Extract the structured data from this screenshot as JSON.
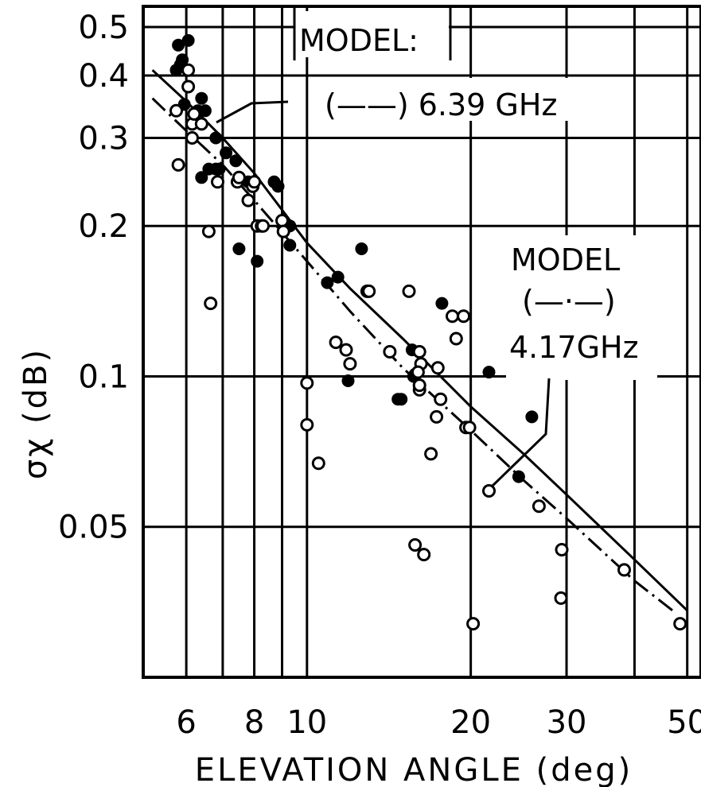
{
  "chart_data": {
    "type": "scatter",
    "title": "",
    "xlabel": "ELEVATION ANGLE (deg)",
    "ylabel": "σχ (dB)",
    "xscale": "log",
    "yscale": "log",
    "xlim": [
      5.0,
      53.0
    ],
    "ylim": [
      0.025,
      0.55
    ],
    "grid": true,
    "x_ticks": [
      {
        "value": 6,
        "label": "6"
      },
      {
        "value": 8,
        "label": "8"
      },
      {
        "value": 10,
        "label": "10"
      },
      {
        "value": 20,
        "label": "20"
      },
      {
        "value": 30,
        "label": "30"
      },
      {
        "value": 50,
        "label": "50"
      }
    ],
    "y_ticks": [
      {
        "value": 0.5,
        "label": "0.5"
      },
      {
        "value": 0.4,
        "label": "0.4"
      },
      {
        "value": 0.3,
        "label": "0.3"
      },
      {
        "value": 0.2,
        "label": "0.2"
      },
      {
        "value": 0.1,
        "label": "0.1"
      },
      {
        "value": 0.05,
        "label": "0.05"
      }
    ],
    "legend": {
      "model_label_1": "MODEL:",
      "entry_1": "(——) 6.39 GHz",
      "model_label_2": "MODEL",
      "entry_2_line": "(—·—)",
      "entry_2_freq": "4.17GHz"
    },
    "series": [
      {
        "marker": "filled-circle",
        "x": [
          5.75,
          5.8,
          5.85,
          5.95,
          5.9,
          6.05,
          6.3,
          6.4,
          6.4,
          6.5,
          6.6,
          6.8,
          6.8,
          6.9,
          7.1,
          7.4,
          7.5,
          7.8,
          8.1,
          8.7,
          8.85,
          9.3,
          9.3,
          10.9,
          11.3,
          11.4,
          11.9,
          12.6,
          14.7,
          14.9,
          15.7,
          15.6,
          15.8,
          17.7,
          21.6,
          24.5,
          25.9
        ],
        "y": [
          0.41,
          0.46,
          0.42,
          0.35,
          0.43,
          0.47,
          0.34,
          0.25,
          0.36,
          0.34,
          0.26,
          0.3,
          0.26,
          0.26,
          0.28,
          0.27,
          0.18,
          0.245,
          0.17,
          0.245,
          0.24,
          0.2,
          0.183,
          0.154,
          0.117,
          0.158,
          0.098,
          0.18,
          0.09,
          0.09,
          0.1,
          0.113,
          0.101,
          0.14,
          0.102,
          0.063,
          0.083
        ]
      },
      {
        "marker": "open-circle",
        "x": [
          5.75,
          5.8,
          6.05,
          6.05,
          6.15,
          6.15,
          6.2,
          6.4,
          6.6,
          6.65,
          6.85,
          7.45,
          7.5,
          7.8,
          7.95,
          8.0,
          8.1,
          8.25,
          8.3,
          9.0,
          9.05,
          10.0,
          10.0,
          10.5,
          11.3,
          11.8,
          12.0,
          12.9,
          13.0,
          14.2,
          15.4,
          15.8,
          16.1,
          16.2,
          16.0,
          16.1,
          16.1,
          16.4,
          16.9,
          17.3,
          17.4,
          17.6,
          18.5,
          18.8,
          19.4,
          19.6,
          19.9,
          20.2,
          21.6,
          26.7,
          29.4,
          29.3,
          38.3,
          48.5
        ],
        "y": [
          0.34,
          0.265,
          0.38,
          0.41,
          0.3,
          0.32,
          0.335,
          0.32,
          0.195,
          0.14,
          0.245,
          0.245,
          0.25,
          0.225,
          0.24,
          0.245,
          0.2,
          0.2,
          0.2,
          0.205,
          0.195,
          0.08,
          0.097,
          0.067,
          0.117,
          0.113,
          0.106,
          0.148,
          0.148,
          0.112,
          0.148,
          0.046,
          0.112,
          0.106,
          0.102,
          0.094,
          0.096,
          0.044,
          0.07,
          0.083,
          0.104,
          0.09,
          0.132,
          0.119,
          0.132,
          0.079,
          0.079,
          0.032,
          0.059,
          0.055,
          0.045,
          0.036,
          0.041,
          0.032
        ]
      }
    ],
    "model_curves": [
      {
        "label": "6.39 GHz",
        "line_style": "solid",
        "x": [
          5.2,
          6.0,
          7.0,
          8.0,
          10.0,
          12.0,
          15.0,
          20.0,
          25.0,
          30.0,
          40.0,
          50.0
        ],
        "y": [
          0.41,
          0.355,
          0.3,
          0.255,
          0.185,
          0.15,
          0.119,
          0.087,
          0.07,
          0.058,
          0.043,
          0.034
        ]
      },
      {
        "label": "4.17GHz",
        "line_style": "dash-dot",
        "x": [
          5.2,
          6.0,
          7.0,
          8.0,
          10.0,
          12.0,
          15.0,
          20.0,
          25.0,
          30.0,
          40.0,
          47.0
        ],
        "y": [
          0.36,
          0.31,
          0.265,
          0.225,
          0.17,
          0.135,
          0.104,
          0.078,
          0.062,
          0.052,
          0.039,
          0.034
        ]
      }
    ]
  }
}
